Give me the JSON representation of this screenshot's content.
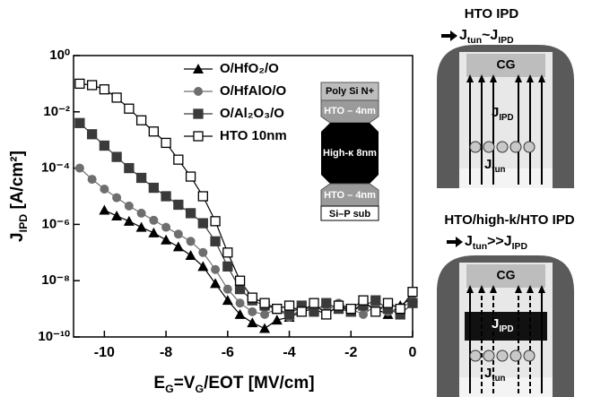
{
  "chart_data": {
    "type": "line",
    "x_label": [
      "E",
      "G",
      "=V",
      "G",
      "/EOT [MV/cm]"
    ],
    "y_label": [
      "J",
      "IPD",
      " [A/cm²]"
    ],
    "log_y": true,
    "legend": "upper center",
    "xlim": [
      -11,
      0
    ],
    "xticks": [
      -10,
      -8,
      -6,
      -4,
      -2,
      0
    ],
    "ylim": [
      1e-10,
      1
    ],
    "yticks": [
      {
        "value": 1,
        "label": "10⁰"
      },
      {
        "value": 0.01,
        "label": "10⁻²"
      },
      {
        "value": 0.0001,
        "label": "10⁻⁴"
      },
      {
        "value": 1e-06,
        "label": "10⁻⁶"
      },
      {
        "value": 1e-08,
        "label": "10⁻⁸"
      },
      {
        "value": 1e-10,
        "label": "10⁻¹⁰"
      }
    ],
    "x": [
      -10.8,
      -10.4,
      -10.0,
      -9.6,
      -9.2,
      -8.8,
      -8.4,
      -8.0,
      -7.6,
      -7.2,
      -6.8,
      -6.4,
      -6.0,
      -5.6,
      -5.2,
      -4.8,
      -4.4,
      -4.0,
      -3.6,
      -3.2,
      -2.8,
      -2.4,
      -2.0,
      -1.6,
      -1.2,
      -0.8,
      -0.4,
      0
    ],
    "series": [
      {
        "name": "O/HfO₂/O",
        "color": "#000000",
        "marker": "triangle",
        "values": [
          null,
          null,
          3.2e-06,
          2e-06,
          1.3e-06,
          7.9e-07,
          5e-07,
          2.8e-07,
          1.6e-07,
          7.9e-08,
          3.2e-08,
          7.9e-09,
          2e-09,
          6.3e-10,
          3.2e-10,
          2e-10,
          4e-10,
          5e-10,
          7.9e-10,
          1e-09,
          6.3e-10,
          1.3e-09,
          7.9e-10,
          1.6e-09,
          1e-09,
          6.3e-10,
          1.3e-09,
          2.5e-09
        ]
      },
      {
        "name": "O/HfAlO/O",
        "color": "#6e6e6e",
        "marker": "circle",
        "values": [
          0.0001,
          4e-05,
          1.8e-05,
          8.9e-06,
          4.5e-06,
          2.5e-06,
          1.4e-06,
          7.9e-07,
          4.5e-07,
          2.5e-07,
          1e-07,
          2.5e-08,
          5e-09,
          1.6e-09,
          7.9e-10,
          6.3e-10,
          1e-09,
          5e-10,
          1e-09,
          1.3e-09,
          7.9e-10,
          1.6e-09,
          1e-09,
          6.3e-10,
          1.3e-09,
          7.9e-10,
          1e-09,
          2e-09
        ]
      },
      {
        "name": "O/Al₂O₃/O",
        "color": "#3a3a3a",
        "marker": "square",
        "values": [
          0.004,
          0.0016,
          0.00063,
          0.00025,
          0.0001,
          4.5e-05,
          2e-05,
          1e-05,
          5e-06,
          2.5e-06,
          1.1e-06,
          2.5e-07,
          3.2e-08,
          5e-09,
          2e-09,
          1.3e-09,
          1e-09,
          6.3e-10,
          1.3e-09,
          7.9e-10,
          1.6e-09,
          1e-09,
          7.9e-10,
          1.3e-09,
          2e-09,
          1e-09,
          6.3e-10,
          1.6e-09
        ]
      },
      {
        "name": "HTO 10nm",
        "color": "#000000",
        "marker": "square-open",
        "values": [
          0.1,
          0.089,
          0.063,
          0.032,
          0.013,
          0.005,
          0.002,
          0.00079,
          0.0002,
          5e-05,
          1e-05,
          1.3e-06,
          1e-07,
          1e-08,
          2.5e-09,
          1.6e-09,
          1e-09,
          1.3e-09,
          7.9e-10,
          1.6e-09,
          6.3e-10,
          1.3e-09,
          1e-09,
          2e-09,
          7.9e-10,
          1.6e-09,
          1e-09,
          4e-09
        ]
      }
    ]
  },
  "inset_stack": {
    "layers": [
      "Poly Si N+",
      "HTO – 4nm",
      "High-κ 8nm",
      "HTO – 4nm",
      "Si–P sub"
    ]
  },
  "diagrams": [
    {
      "title": "HTO IPD",
      "relation": [
        "J",
        "tun",
        "~J",
        "IPD"
      ],
      "gate": "CG",
      "ipd": [
        "J",
        "IPD"
      ],
      "tun": [
        "J",
        "tun"
      ]
    },
    {
      "title": "HTO/high-k/HTO IPD",
      "relation": [
        "J",
        "tun",
        ">>J",
        "IPD"
      ],
      "gate": "CG",
      "ipd": [
        "J",
        "IPD"
      ],
      "tun": [
        "J",
        "tun"
      ]
    }
  ]
}
